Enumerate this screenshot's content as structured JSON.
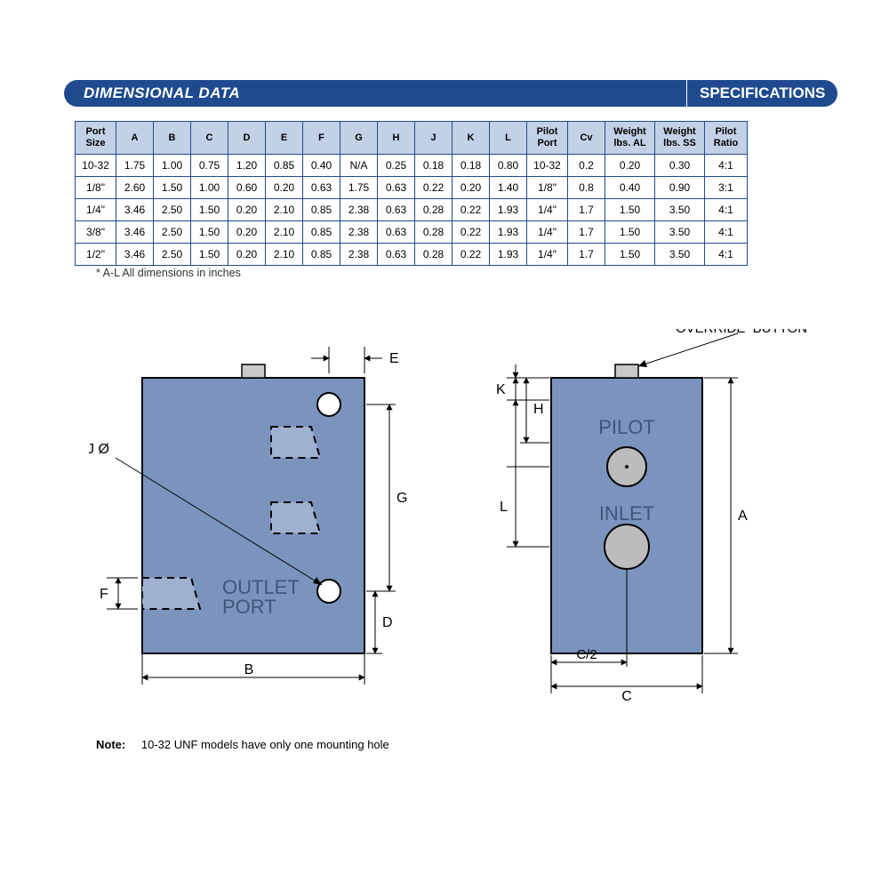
{
  "header": {
    "left": "DIMENSIONAL DATA",
    "right": "SPECIFICATIONS"
  },
  "table": {
    "columns": [
      "Port\nSize",
      "A",
      "B",
      "C",
      "D",
      "E",
      "F",
      "G",
      "H",
      "J",
      "K",
      "L",
      "Pilot\nPort",
      "Cv",
      "Weight\nlbs. AL",
      "Weight\nlbs. SS",
      "Pilot\nRatio"
    ],
    "rows": [
      [
        "10-32",
        "1.75",
        "1.00",
        "0.75",
        "1.20",
        "0.85",
        "0.40",
        "N/A",
        "0.25",
        "0.18",
        "0.18",
        "0.80",
        "10-32",
        "0.2",
        "0.20",
        "0.30",
        "4:1"
      ],
      [
        "1/8\"",
        "2.60",
        "1.50",
        "1.00",
        "0.60",
        "0.20",
        "0.63",
        "1.75",
        "0.63",
        "0.22",
        "0.20",
        "1.40",
        "1/8\"",
        "0.8",
        "0.40",
        "0.90",
        "3:1"
      ],
      [
        "1/4\"",
        "3.46",
        "2.50",
        "1.50",
        "0.20",
        "2.10",
        "0.85",
        "2.38",
        "0.63",
        "0.28",
        "0.22",
        "1.93",
        "1/4\"",
        "1.7",
        "1.50",
        "3.50",
        "4:1"
      ],
      [
        "3/8\"",
        "3.46",
        "2.50",
        "1.50",
        "0.20",
        "2.10",
        "0.85",
        "2.38",
        "0.63",
        "0.28",
        "0.22",
        "1.93",
        "1/4\"",
        "1.7",
        "1.50",
        "3.50",
        "4:1"
      ],
      [
        "1/2\"",
        "3.46",
        "2.50",
        "1.50",
        "0.20",
        "2.10",
        "0.85",
        "2.38",
        "0.63",
        "0.28",
        "0.22",
        "1.93",
        "1/4\"",
        "1.7",
        "1.50",
        "3.50",
        "4:1"
      ]
    ]
  },
  "footnote": "*  A-L All dimensions in inches",
  "note_label": "Note:",
  "note_text": "10-32 UNF models have only one mounting hole",
  "diagram": {
    "body_fill": "#7b94bd",
    "body_stroke": "#000000",
    "dim_text_color": "#000000",
    "label_font": "15px Arial",
    "callout_font": "14px Arial",
    "left_view": {
      "labels": {
        "outlet": "OUTLET",
        "port": "PORT"
      },
      "dims": {
        "B": "B",
        "D": "D",
        "E": "E",
        "F": "F",
        "G": "G",
        "J": "J Ø"
      }
    },
    "right_view": {
      "labels": {
        "pilot": "PILOT",
        "inlet": "INLET",
        "mob": "MANUAL\nOVERRIDE  BUTTON"
      },
      "dims": {
        "A": "A",
        "C": "C",
        "C2": "C/2",
        "H": "H",
        "K": "K",
        "L": "L"
      }
    }
  }
}
